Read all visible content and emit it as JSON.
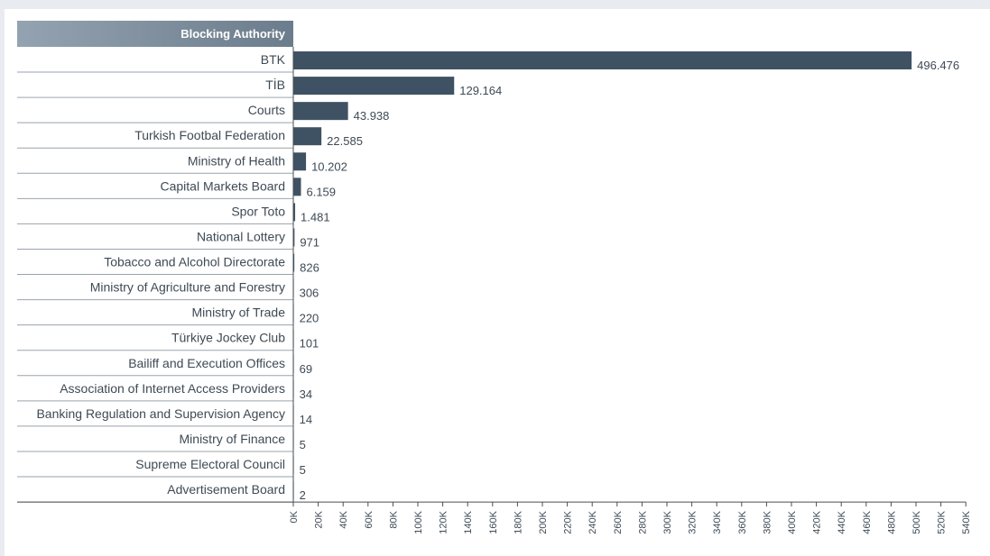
{
  "chart_data": {
    "type": "bar",
    "orientation": "horizontal",
    "column_header": "Blocking Authority",
    "categories": [
      "BTK",
      "TİB",
      "Courts",
      "Turkish Footbal Federation",
      "Ministry of Health",
      "Capital Markets Board",
      "Spor Toto",
      "National Lottery",
      "Tobacco and Alcohol Directorate",
      "Ministry of Agriculture and Forestry",
      "Ministry of Trade",
      "Türkiye Jockey Club",
      "Bailiff and Execution Offices",
      "Association of Internet Access Providers",
      "Banking Regulation and Supervision Agency",
      "Ministry of Finance",
      "Supreme Electoral Council",
      "Advertisement Board"
    ],
    "values": [
      496476,
      129164,
      43938,
      22585,
      10202,
      6159,
      1481,
      971,
      826,
      306,
      220,
      101,
      69,
      34,
      14,
      5,
      5,
      2
    ],
    "value_labels": [
      "496.476",
      "129.164",
      "43.938",
      "22.585",
      "10.202",
      "6.159",
      "1.481",
      "971",
      "826",
      "306",
      "220",
      "101",
      "69",
      "34",
      "14",
      "5",
      "5",
      "2"
    ],
    "xlim": [
      0,
      540000
    ],
    "x_ticks": [
      0,
      20000,
      40000,
      60000,
      80000,
      100000,
      120000,
      140000,
      160000,
      180000,
      200000,
      220000,
      240000,
      260000,
      280000,
      300000,
      320000,
      340000,
      360000,
      380000,
      400000,
      420000,
      440000,
      460000,
      480000,
      500000,
      520000,
      540000
    ],
    "x_tick_labels": [
      "0K",
      "20K",
      "40K",
      "60K",
      "80K",
      "100K",
      "120K",
      "140K",
      "160K",
      "180K",
      "200K",
      "220K",
      "240K",
      "260K",
      "280K",
      "300K",
      "320K",
      "340K",
      "360K",
      "380K",
      "400K",
      "420K",
      "440K",
      "460K",
      "480K",
      "500K",
      "520K",
      "540K"
    ],
    "grid": false,
    "legend": "none"
  },
  "colors": {
    "bar": "#3f5263",
    "header_bg_start": "#94a3b1",
    "header_bg_end": "#6b7c8c",
    "separator": "#9aa3ab",
    "axis": "#4a4f55",
    "text": "#3e4a55",
    "panel_bg": "#ffffff",
    "page_bg": "#e8ebef"
  }
}
